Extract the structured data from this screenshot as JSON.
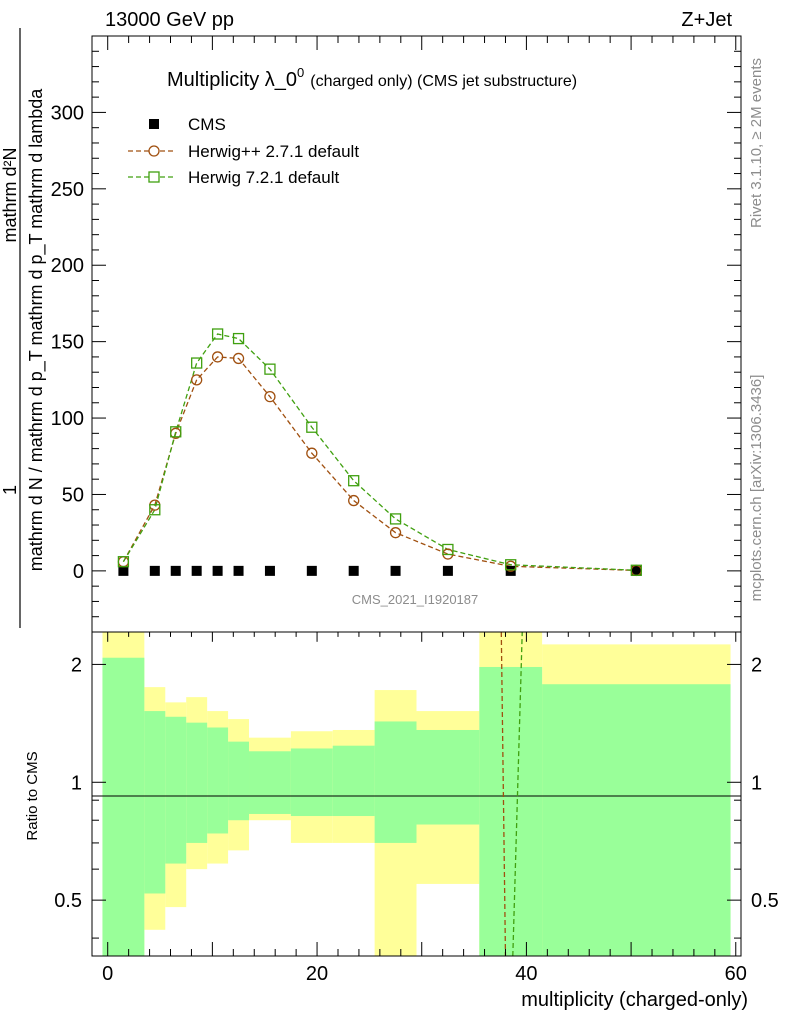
{
  "header": {
    "energy_label": "13000 GeV pp",
    "process_label": "Z+Jet"
  },
  "side_labels": {
    "rivet": "Rivet 3.1.10, ≥ 2M events",
    "mcplots": "mcplots.cern.ch [arXiv:1306.3436]"
  },
  "watermark": "CMS_2021_I1920187",
  "chart_data": [
    {
      "type": "line",
      "title": "Multiplicity λ_0",
      "title_superscript": "0",
      "title_suffix": "(charged only) (CMS jet substructure)",
      "ylabel": {
        "numerator": "mathrm d²N",
        "denominator": "mathrm d p_T mathrm d p_T mathrm d lambda",
        "prefix_line1": "1",
        "prefix_line2": "mathrm d N / mathrm d p_T mathrm d p_T mathrm d lambda"
      },
      "xlim": [
        -1.5,
        60.5
      ],
      "ylim": [
        -40,
        350
      ],
      "yticks": [
        0,
        50,
        100,
        150,
        200,
        250,
        300
      ],
      "grid": false,
      "legend_position": "top-left",
      "legend": [
        "CMS",
        "Herwig++ 2.7.1 default",
        "Herwig 7.2.1 default"
      ],
      "colors": {
        "data": "#000000",
        "herwigpp": "#a05010",
        "herwig7": "#40a010"
      },
      "series": [
        {
          "name": "CMS",
          "marker": "filled-square",
          "x": [
            1.5,
            4.5,
            6.5,
            8.5,
            10.5,
            12.5,
            15.5,
            19.5,
            23.5,
            27.5,
            32.5,
            38.5,
            50.5
          ],
          "values": [
            0,
            0,
            0,
            0,
            0,
            0,
            0,
            0,
            0,
            0,
            0,
            0,
            0
          ]
        },
        {
          "name": "Herwig++ 2.7.1 default",
          "marker": "open-circle",
          "x": [
            1.5,
            4.5,
            6.5,
            8.5,
            10.5,
            12.5,
            15.5,
            19.5,
            23.5,
            27.5,
            32.5,
            38.5,
            50.5
          ],
          "values": [
            6,
            43,
            90,
            125,
            140,
            139,
            114,
            77,
            46,
            25,
            11,
            3,
            0.3
          ]
        },
        {
          "name": "Herwig 7.2.1 default",
          "marker": "open-square",
          "x": [
            1.5,
            4.5,
            6.5,
            8.5,
            10.5,
            12.5,
            15.5,
            19.5,
            23.5,
            27.5,
            32.5,
            38.5,
            50.5
          ],
          "values": [
            6,
            40,
            91,
            136,
            155,
            152,
            132,
            94,
            59,
            34,
            14,
            4,
            0.4
          ]
        }
      ]
    },
    {
      "type": "area",
      "ylabel": "Ratio to CMS",
      "xlabel": "multiplicity (charged-only)",
      "xlim": [
        -1.5,
        60.5
      ],
      "ylim": [
        0.36,
        2.42
      ],
      "yticks": [
        0.5,
        1,
        2
      ],
      "xticks": [
        0,
        20,
        40,
        60
      ],
      "reference_line": 1,
      "colors": {
        "inner_band": "#99ff99",
        "outer_band": "#ffff99"
      },
      "bins": [
        {
          "x0": -0.5,
          "x1": 3.5,
          "inner": [
            0.36,
            2.08
          ],
          "outer": [
            0.36,
            2.42
          ]
        },
        {
          "x0": 3.5,
          "x1": 5.5,
          "inner": [
            0.52,
            1.52
          ],
          "outer": [
            0.42,
            1.75
          ]
        },
        {
          "x0": 5.5,
          "x1": 7.5,
          "inner": [
            0.62,
            1.47
          ],
          "outer": [
            0.48,
            1.6
          ]
        },
        {
          "x0": 7.5,
          "x1": 9.5,
          "inner": [
            0.7,
            1.42
          ],
          "outer": [
            0.6,
            1.65
          ]
        },
        {
          "x0": 9.5,
          "x1": 11.5,
          "inner": [
            0.74,
            1.38
          ],
          "outer": [
            0.62,
            1.52
          ]
        },
        {
          "x0": 11.5,
          "x1": 13.5,
          "inner": [
            0.8,
            1.27
          ],
          "outer": [
            0.67,
            1.45
          ]
        },
        {
          "x0": 13.5,
          "x1": 17.5,
          "inner": [
            0.83,
            1.2
          ],
          "outer": [
            0.8,
            1.3
          ]
        },
        {
          "x0": 17.5,
          "x1": 21.5,
          "inner": [
            0.82,
            1.22
          ],
          "outer": [
            0.7,
            1.35
          ]
        },
        {
          "x0": 21.5,
          "x1": 25.5,
          "inner": [
            0.82,
            1.24
          ],
          "outer": [
            0.7,
            1.36
          ]
        },
        {
          "x0": 25.5,
          "x1": 29.5,
          "inner": [
            0.7,
            1.43
          ],
          "outer": [
            0.36,
            1.72
          ]
        },
        {
          "x0": 29.5,
          "x1": 35.5,
          "inner": [
            0.78,
            1.36
          ],
          "outer": [
            0.55,
            1.52
          ]
        },
        {
          "x0": 35.5,
          "x1": 41.5,
          "inner": [
            0.36,
            1.97
          ],
          "outer": [
            0.36,
            2.42
          ]
        },
        {
          "x0": 41.5,
          "x1": 59.5,
          "inner": [
            0.36,
            1.78
          ],
          "outer": [
            0.36,
            2.25
          ]
        }
      ],
      "ratio_series": [
        {
          "name": "Herwig++ 2.7.1 default",
          "points": [
            [
              37.6,
              2.42
            ],
            [
              38.0,
              0.36
            ]
          ]
        },
        {
          "name": "Herwig 7.2.1 default",
          "points": [
            [
              38.7,
              0.36
            ],
            [
              39.6,
              2.42
            ]
          ]
        }
      ]
    }
  ]
}
